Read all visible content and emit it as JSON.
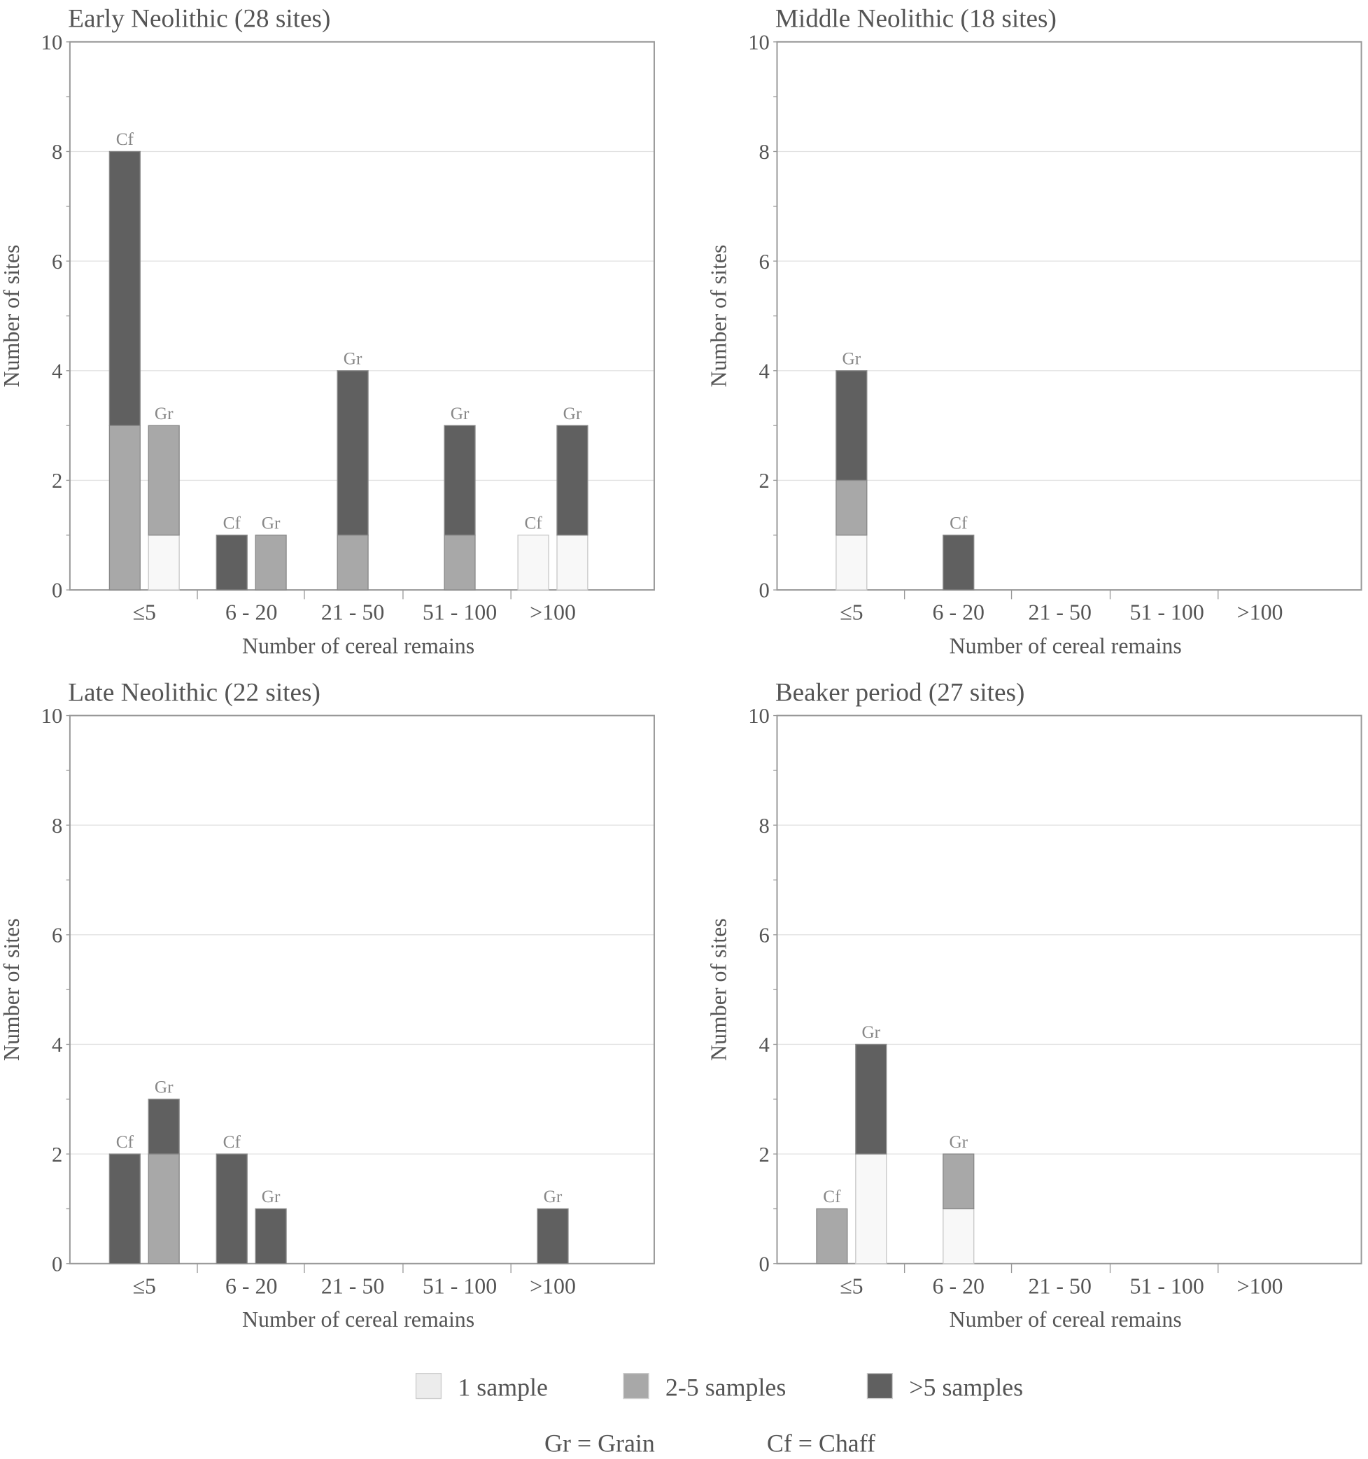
{
  "legend": {
    "items": [
      {
        "label": "1 sample",
        "color": "#f8f8f8"
      },
      {
        "label": "2-5 samples",
        "color": "#a8a8a8"
      },
      {
        "label": ">5 samples",
        "color": "#606060"
      }
    ],
    "notes": [
      "Gr = Grain",
      "Cf = Chaff"
    ]
  },
  "chart_data": [
    {
      "type": "bar",
      "stacked": true,
      "title": "Early Neolithic (28 sites)",
      "xlabel": "Number of cereal remains",
      "ylabel": "Number of sites",
      "ylim": [
        0,
        10
      ],
      "yticks": [
        0,
        2,
        4,
        6,
        8,
        10
      ],
      "grid": true,
      "categories": [
        "≤5",
        "6 - 20",
        "21 - 50",
        "51 - 100",
        ">100"
      ],
      "stack_order": [
        "1 sample",
        "2-5 samples",
        ">5 samples"
      ],
      "bars": [
        {
          "category": "≤5",
          "label": "Cf",
          "values": [
            0,
            3,
            5
          ]
        },
        {
          "category": "≤5",
          "label": "Gr",
          "values": [
            1,
            2,
            0
          ]
        },
        {
          "category": "6 - 20",
          "label": "Cf",
          "values": [
            0,
            0,
            1
          ]
        },
        {
          "category": "6 - 20",
          "label": "Gr",
          "values": [
            0,
            1,
            0
          ]
        },
        {
          "category": "21 - 50",
          "label": "Gr",
          "values": [
            0,
            1,
            3
          ]
        },
        {
          "category": "51 - 100",
          "label": "Gr",
          "values": [
            0,
            1,
            2
          ]
        },
        {
          "category": ">100",
          "label": "Cf",
          "values": [
            1,
            0,
            0
          ]
        },
        {
          "category": ">100",
          "label": "Gr",
          "values": [
            1,
            0,
            2
          ]
        }
      ]
    },
    {
      "type": "bar",
      "stacked": true,
      "title": "Middle Neolithic (18 sites)",
      "xlabel": "Number of cereal remains",
      "ylabel": "Number of sites",
      "ylim": [
        0,
        10
      ],
      "yticks": [
        0,
        2,
        4,
        6,
        8,
        10
      ],
      "grid": true,
      "categories": [
        "≤5",
        "6 - 20",
        "21 - 50",
        "51 - 100",
        ">100"
      ],
      "stack_order": [
        "1 sample",
        "2-5 samples",
        ">5 samples"
      ],
      "bars": [
        {
          "category": "≤5",
          "label": "Gr",
          "values": [
            1,
            1,
            2
          ]
        },
        {
          "category": "6 - 20",
          "label": "Cf",
          "values": [
            0,
            0,
            1
          ]
        }
      ]
    },
    {
      "type": "bar",
      "stacked": true,
      "title": "Late Neolithic (22 sites)",
      "xlabel": "Number of cereal remains",
      "ylabel": "Number of sites",
      "ylim": [
        0,
        10
      ],
      "yticks": [
        0,
        2,
        4,
        6,
        8,
        10
      ],
      "grid": true,
      "categories": [
        "≤5",
        "6 - 20",
        "21 - 50",
        "51 - 100",
        ">100"
      ],
      "stack_order": [
        "1 sample",
        "2-5 samples",
        ">5 samples"
      ],
      "bars": [
        {
          "category": "≤5",
          "label": "Cf",
          "values": [
            0,
            0,
            2
          ]
        },
        {
          "category": "≤5",
          "label": "Gr",
          "values": [
            0,
            2,
            1
          ]
        },
        {
          "category": "6 - 20",
          "label": "Cf",
          "values": [
            0,
            0,
            2
          ]
        },
        {
          "category": "6 - 20",
          "label": "Gr",
          "values": [
            0,
            0,
            1
          ]
        },
        {
          "category": ">100",
          "label": "Gr",
          "values": [
            0,
            0,
            1
          ]
        }
      ]
    },
    {
      "type": "bar",
      "stacked": true,
      "title": "Beaker period (27 sites)",
      "xlabel": "Number of cereal remains",
      "ylabel": "Number of sites",
      "ylim": [
        0,
        10
      ],
      "yticks": [
        0,
        2,
        4,
        6,
        8,
        10
      ],
      "grid": true,
      "categories": [
        "≤5",
        "6 - 20",
        "21 - 50",
        "51 - 100",
        ">100"
      ],
      "stack_order": [
        "1 sample",
        "2-5 samples",
        ">5 samples"
      ],
      "bars": [
        {
          "category": "≤5",
          "label": "Cf",
          "values": [
            0,
            1,
            0
          ]
        },
        {
          "category": "≤5",
          "label": "Gr",
          "values": [
            2,
            0,
            2
          ]
        },
        {
          "category": "6 - 20",
          "label": "Gr",
          "values": [
            1,
            1,
            0
          ]
        }
      ]
    }
  ]
}
